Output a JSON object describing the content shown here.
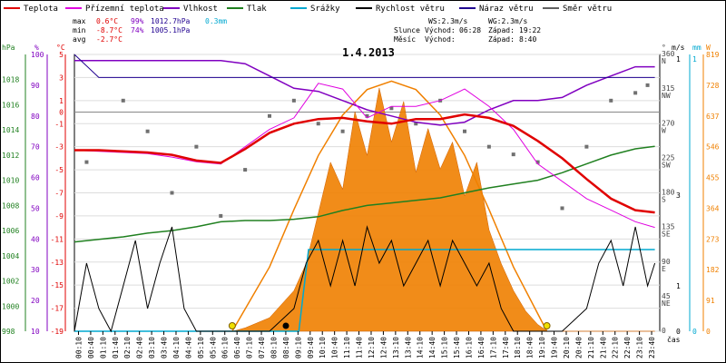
{
  "chart_data": {
    "type": "line",
    "title": "1.4.2013",
    "legend": [
      {
        "label": "Teplota",
        "color": "#e00000"
      },
      {
        "label": "Přízemní teplota",
        "color": "#e000e0"
      },
      {
        "label": "Vlhkost",
        "color": "#8000c0"
      },
      {
        "label": "Tlak",
        "color": "#208020"
      },
      {
        "label": "Srážky",
        "color": "#00a8d0"
      },
      {
        "label": "Rychlost větru",
        "color": "#000000"
      },
      {
        "label": "Náraz větru",
        "color": "#200090"
      },
      {
        "label": "Směr větru",
        "color": "#606060"
      }
    ],
    "stats": {
      "max": {
        "label": "max",
        "temp": "0.6°C",
        "hum": "99%",
        "press": "1012.7hPa",
        "rain": "0.3mm"
      },
      "min": {
        "label": "min",
        "temp": "-8.7°C",
        "hum": "74%",
        "press": "1005.1hPa"
      },
      "avg": {
        "label": "avg",
        "temp": "-2.7°C"
      },
      "ws": "WS:2.3m/s",
      "wg": "WG:2.3m/s",
      "sun_label": "Slunce",
      "moon_label": "Měsíc",
      "rise_label": "Východ:",
      "set_label": "Západ:",
      "sunrise": "06:28",
      "sunset": "19:22",
      "moonrise": "",
      "moonset": "8:40"
    },
    "axes": {
      "hpa": {
        "title": "hPa",
        "ticks": [
          "998",
          "1000",
          "1002",
          "1004",
          "1006",
          "1008",
          "1010",
          "1012",
          "1014",
          "1016",
          "1018"
        ],
        "range": [
          998,
          1020
        ]
      },
      "pct": {
        "title": "%",
        "ticks": [
          "10",
          "20",
          "30",
          "40",
          "50",
          "60",
          "70",
          "80",
          "90",
          "100"
        ],
        "range": [
          10,
          100
        ]
      },
      "temp": {
        "title": "°C",
        "ticks": [
          "-19",
          "-17",
          "-15",
          "-13",
          "-11",
          "-9",
          "-7",
          "-5",
          "-3",
          "-1",
          "0",
          "1",
          "3",
          "5"
        ],
        "range": [
          -19,
          5
        ]
      },
      "dir": {
        "title": "°",
        "ticks": [
          {
            "deg": "360",
            "dir": "N"
          },
          {
            "deg": "315",
            "dir": "NW"
          },
          {
            "deg": "270",
            "dir": "W"
          },
          {
            "deg": "225",
            "dir": "SW"
          },
          {
            "deg": "180",
            "dir": "S"
          },
          {
            "deg": "135",
            "dir": "SE"
          },
          {
            "deg": "90",
            "dir": "E"
          },
          {
            "deg": "45",
            "dir": "NE"
          },
          {
            "deg": "0",
            "dir": ""
          }
        ],
        "range": [
          0,
          360
        ]
      },
      "ms": {
        "title": "m/s",
        "ticks": [
          "1",
          "3",
          "1",
          "0"
        ]
      },
      "mm": {
        "title": "mm",
        "ticks": [
          "1",
          "0"
        ]
      },
      "w": {
        "title": "W",
        "ticks": [
          "819",
          "728",
          "637",
          "546",
          "455",
          "364",
          "273",
          "182",
          "91",
          "0"
        ],
        "range": [
          0,
          819
        ]
      },
      "x_title": "čas",
      "x_ticks": [
        "00:10",
        "00:40",
        "01:10",
        "01:40",
        "02:10",
        "02:40",
        "03:10",
        "03:40",
        "04:10",
        "04:40",
        "05:10",
        "05:40",
        "06:10",
        "06:40",
        "07:10",
        "07:40",
        "08:10",
        "08:40",
        "09:10",
        "09:40",
        "10:10",
        "10:40",
        "11:10",
        "11:40",
        "12:10",
        "12:40",
        "13:10",
        "13:40",
        "14:10",
        "14:40",
        "15:10",
        "15:40",
        "16:10",
        "16:40",
        "17:10",
        "17:40",
        "18:10",
        "18:40",
        "19:10",
        "19:40",
        "20:10",
        "20:40",
        "21:10",
        "21:40",
        "22:10",
        "22:40",
        "23:10",
        "23:40"
      ],
      "x_range": [
        0,
        24
      ]
    },
    "series": {
      "teplota": [
        [
          0,
          -3.3
        ],
        [
          1,
          -3.3
        ],
        [
          2,
          -3.4
        ],
        [
          3,
          -3.5
        ],
        [
          4,
          -3.7
        ],
        [
          5,
          -4.2
        ],
        [
          6,
          -4.4
        ],
        [
          7,
          -3.2
        ],
        [
          8,
          -1.8
        ],
        [
          9,
          -1.0
        ],
        [
          10,
          -0.6
        ],
        [
          11,
          -0.5
        ],
        [
          12,
          -0.8
        ],
        [
          13,
          -1.0
        ],
        [
          14,
          -0.6
        ],
        [
          15,
          -0.6
        ],
        [
          16,
          -0.2
        ],
        [
          17,
          -0.5
        ],
        [
          18,
          -1.2
        ],
        [
          19,
          -2.5
        ],
        [
          20,
          -4.0
        ],
        [
          21,
          -5.8
        ],
        [
          22,
          -7.5
        ],
        [
          23,
          -8.5
        ],
        [
          23.8,
          -8.7
        ]
      ],
      "prizemni": [
        [
          0,
          -3.3
        ],
        [
          1,
          -3.4
        ],
        [
          2,
          -3.5
        ],
        [
          3,
          -3.6
        ],
        [
          4,
          -3.9
        ],
        [
          5,
          -4.3
        ],
        [
          6,
          -4.5
        ],
        [
          7,
          -3.0
        ],
        [
          8,
          -1.5
        ],
        [
          9,
          -0.5
        ],
        [
          10,
          2.5
        ],
        [
          11,
          2.0
        ],
        [
          12,
          -0.5
        ],
        [
          13,
          0.5
        ],
        [
          14,
          0.5
        ],
        [
          15,
          1.0
        ],
        [
          16,
          2.0
        ],
        [
          17,
          0.5
        ],
        [
          18,
          -1.5
        ],
        [
          19,
          -4.5
        ],
        [
          20,
          -6.0
        ],
        [
          21,
          -7.5
        ],
        [
          22,
          -8.5
        ],
        [
          23,
          -9.5
        ],
        [
          23.8,
          -10.0
        ]
      ],
      "vlhkost": [
        [
          0,
          98
        ],
        [
          1,
          98
        ],
        [
          2,
          98
        ],
        [
          3,
          98
        ],
        [
          4,
          98
        ],
        [
          5,
          98
        ],
        [
          6,
          98
        ],
        [
          7,
          97
        ],
        [
          8,
          93
        ],
        [
          9,
          89
        ],
        [
          10,
          88
        ],
        [
          11,
          85
        ],
        [
          12,
          82
        ],
        [
          13,
          80
        ],
        [
          14,
          78
        ],
        [
          15,
          77
        ],
        [
          16,
          78
        ],
        [
          17,
          82
        ],
        [
          18,
          85
        ],
        [
          19,
          85
        ],
        [
          20,
          86
        ],
        [
          21,
          90
        ],
        [
          22,
          93
        ],
        [
          23,
          96
        ],
        [
          23.8,
          96
        ]
      ],
      "tlak": [
        [
          0,
          1005.1
        ],
        [
          1,
          1005.3
        ],
        [
          2,
          1005.5
        ],
        [
          3,
          1005.8
        ],
        [
          4,
          1006.0
        ],
        [
          5,
          1006.3
        ],
        [
          6,
          1006.7
        ],
        [
          7,
          1006.8
        ],
        [
          8,
          1006.8
        ],
        [
          9,
          1006.9
        ],
        [
          10,
          1007.1
        ],
        [
          11,
          1007.6
        ],
        [
          12,
          1008.0
        ],
        [
          13,
          1008.2
        ],
        [
          14,
          1008.4
        ],
        [
          15,
          1008.6
        ],
        [
          16,
          1009.0
        ],
        [
          17,
          1009.4
        ],
        [
          18,
          1009.7
        ],
        [
          19,
          1010.0
        ],
        [
          20,
          1010.6
        ],
        [
          21,
          1011.3
        ],
        [
          22,
          1012.0
        ],
        [
          23,
          1012.5
        ],
        [
          23.8,
          1012.7
        ]
      ],
      "srazky": [
        [
          0,
          0
        ],
        [
          9.2,
          0
        ],
        [
          9.6,
          0.3
        ],
        [
          23.8,
          0.3
        ]
      ],
      "rychlost": [
        [
          0,
          0
        ],
        [
          0.5,
          1.5
        ],
        [
          1,
          0.5
        ],
        [
          1.5,
          0
        ],
        [
          2,
          1.0
        ],
        [
          2.5,
          2.0
        ],
        [
          3,
          0.5
        ],
        [
          3.5,
          1.5
        ],
        [
          4,
          2.3
        ],
        [
          4.5,
          0.5
        ],
        [
          5,
          0
        ],
        [
          6,
          0
        ],
        [
          7,
          0
        ],
        [
          8,
          0
        ],
        [
          9,
          0.5
        ],
        [
          9.5,
          1.5
        ],
        [
          10,
          2.0
        ],
        [
          10.5,
          1.0
        ],
        [
          11,
          2.0
        ],
        [
          11.5,
          1.0
        ],
        [
          12,
          2.3
        ],
        [
          12.5,
          1.5
        ],
        [
          13,
          2.0
        ],
        [
          13.5,
          1.0
        ],
        [
          14,
          1.5
        ],
        [
          14.5,
          2.0
        ],
        [
          15,
          1.0
        ],
        [
          15.5,
          2.0
        ],
        [
          16,
          1.5
        ],
        [
          16.5,
          1.0
        ],
        [
          17,
          1.5
        ],
        [
          17.5,
          0.5
        ],
        [
          18,
          0
        ],
        [
          19,
          0
        ],
        [
          20,
          0
        ],
        [
          21,
          0.5
        ],
        [
          21.5,
          1.5
        ],
        [
          22,
          2.0
        ],
        [
          22.5,
          1.0
        ],
        [
          23,
          2.3
        ],
        [
          23.5,
          1.0
        ],
        [
          23.8,
          1.5
        ]
      ],
      "naraz": [
        [
          0,
          360
        ],
        [
          1,
          330
        ],
        [
          2,
          330
        ],
        [
          3,
          330
        ],
        [
          4,
          330
        ],
        [
          5,
          330
        ],
        [
          6,
          330
        ],
        [
          7,
          330
        ],
        [
          8,
          330
        ],
        [
          9,
          330
        ],
        [
          10,
          330
        ],
        [
          11,
          330
        ],
        [
          12,
          330
        ],
        [
          13,
          330
        ],
        [
          14,
          330
        ],
        [
          15,
          330
        ],
        [
          16,
          330
        ],
        [
          17,
          330
        ],
        [
          18,
          330
        ],
        [
          19,
          330
        ],
        [
          20,
          330
        ],
        [
          21,
          330
        ],
        [
          22,
          330
        ],
        [
          23,
          330
        ],
        [
          23.8,
          330
        ]
      ],
      "smer": [
        [
          0.5,
          220
        ],
        [
          2,
          300
        ],
        [
          3,
          260
        ],
        [
          4,
          180
        ],
        [
          5,
          240
        ],
        [
          6,
          150
        ],
        [
          7,
          210
        ],
        [
          8,
          280
        ],
        [
          9,
          300
        ],
        [
          10,
          270
        ],
        [
          11,
          260
        ],
        [
          12,
          280
        ],
        [
          13,
          290
        ],
        [
          14,
          270
        ],
        [
          15,
          300
        ],
        [
          16,
          260
        ],
        [
          17,
          240
        ],
        [
          18,
          230
        ],
        [
          19,
          220
        ],
        [
          20,
          160
        ],
        [
          21,
          240
        ],
        [
          22,
          300
        ],
        [
          23,
          310
        ],
        [
          23.5,
          320
        ]
      ],
      "slunce": [
        [
          6.47,
          0
        ],
        [
          8,
          190
        ],
        [
          9,
          360
        ],
        [
          10,
          520
        ],
        [
          11,
          640
        ],
        [
          12,
          715
        ],
        [
          13,
          740
        ],
        [
          14,
          715
        ],
        [
          15,
          640
        ],
        [
          16,
          520
        ],
        [
          17,
          360
        ],
        [
          18,
          190
        ],
        [
          19.37,
          0
        ]
      ],
      "zareni": [
        [
          0,
          0
        ],
        [
          6.5,
          0
        ],
        [
          7,
          10
        ],
        [
          8,
          40
        ],
        [
          9,
          120
        ],
        [
          9.5,
          200
        ],
        [
          10,
          350
        ],
        [
          10.5,
          500
        ],
        [
          11,
          420
        ],
        [
          11.5,
          650
        ],
        [
          12,
          520
        ],
        [
          12.5,
          720
        ],
        [
          13,
          560
        ],
        [
          13.5,
          680
        ],
        [
          14,
          470
        ],
        [
          14.5,
          600
        ],
        [
          15,
          480
        ],
        [
          15.5,
          560
        ],
        [
          16,
          400
        ],
        [
          16.5,
          500
        ],
        [
          17,
          300
        ],
        [
          17.5,
          200
        ],
        [
          18,
          120
        ],
        [
          18.5,
          60
        ],
        [
          19,
          20
        ],
        [
          19.4,
          0
        ],
        [
          23.8,
          0
        ]
      ]
    }
  }
}
